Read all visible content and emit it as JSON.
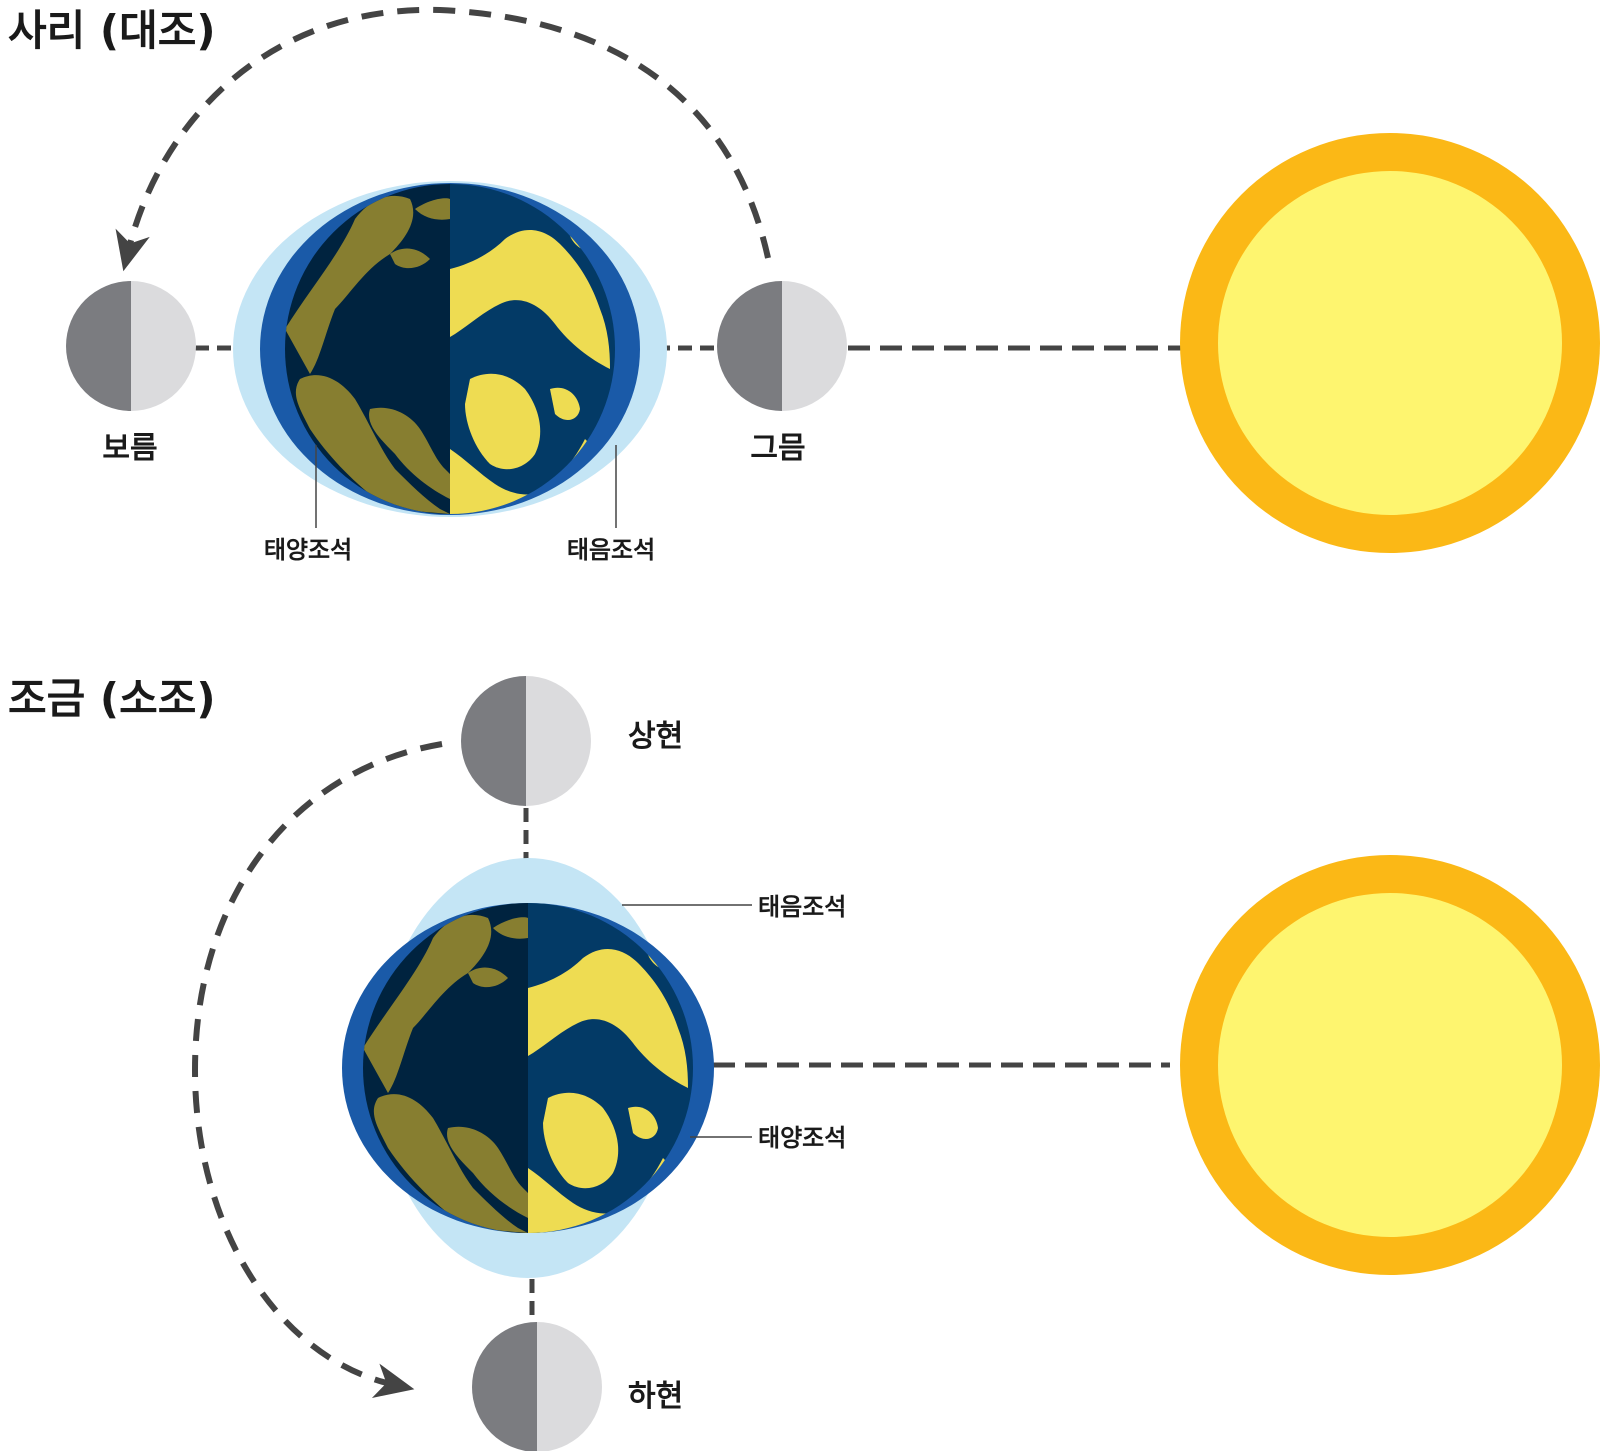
{
  "spring": {
    "title": "사리 (대조)",
    "full_moon_label": "보름",
    "new_moon_label": "그믐",
    "tide_left_label": "태양조석",
    "tide_right_label": "태음조석"
  },
  "neap": {
    "title": "조금 (소조)",
    "first_quarter_label": "상현",
    "last_quarter_label": "하현",
    "lunar_tide_label": "태음조석",
    "solar_tide_label": "태양조석"
  },
  "colors": {
    "tide_bulge": "#c4e5f5",
    "ocean_ring": "#1a5aa8",
    "ocean_day": "#033a66",
    "ocean_night": "#00233f",
    "land_day": "#eedc52",
    "land_night": "#877e30",
    "sun_outer": "#fbb816",
    "sun_inner": "#fef56f",
    "moon_dark": "#7b7c80",
    "moon_light": "#dbdbdd",
    "dash": "#444444"
  }
}
